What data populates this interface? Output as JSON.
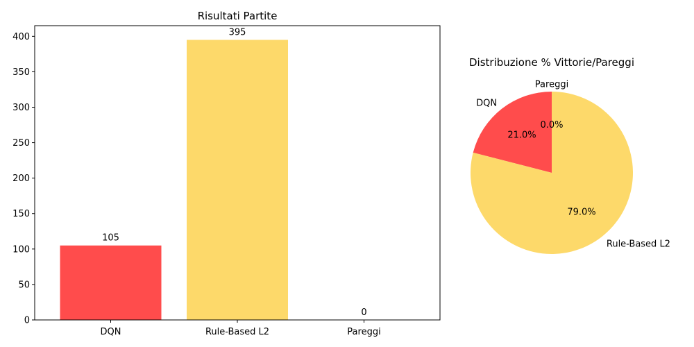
{
  "chart_data": [
    {
      "type": "bar",
      "title": "Risultati Partite",
      "categories": [
        "DQN",
        "Rule-Based L2",
        "Pareggi"
      ],
      "values": [
        105,
        395,
        0
      ],
      "data_labels": [
        "105",
        "395",
        "0"
      ],
      "colors": [
        "#ff4c4c",
        "#fdd96a",
        "#ffffff"
      ],
      "ylim": [
        0,
        415
      ],
      "yticks": [
        0,
        50,
        100,
        150,
        200,
        250,
        300,
        350,
        400
      ],
      "xlabel": "",
      "ylabel": "",
      "grid": false
    },
    {
      "type": "pie",
      "title": "Distribuzione % Vittorie/Pareggi",
      "labels": [
        "DQN",
        "Rule-Based L2",
        "Pareggi"
      ],
      "values": [
        21.0,
        79.0,
        0.0
      ],
      "pct_labels": [
        "21.0%",
        "79.0%",
        "0.0%"
      ],
      "colors": [
        "#ff4c4c",
        "#fdd96a",
        "#ffffff"
      ],
      "start_angle_deg": 90,
      "direction": "counterclockwise"
    }
  ]
}
